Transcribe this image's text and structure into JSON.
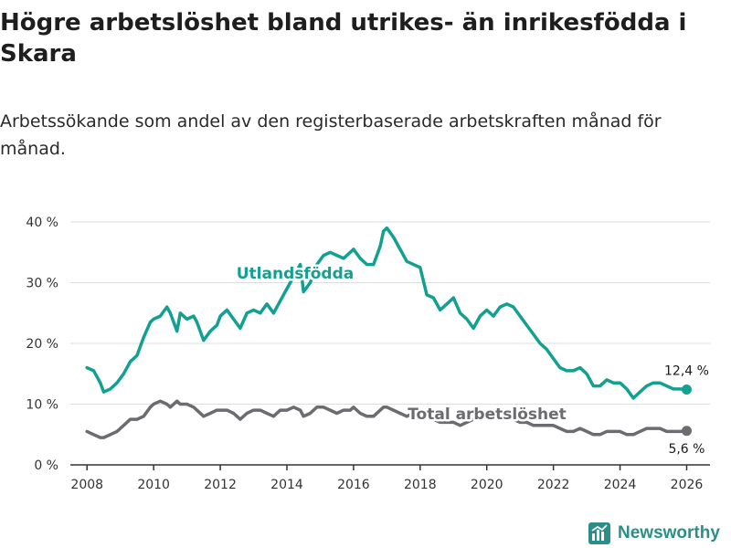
{
  "title": "Högre arbetslöshet bland utrikes- än inrikesfödda i Skara",
  "subtitle": "Arbetssökande som andel av den registerbaserade arbetskraften månad för månad.",
  "brand": {
    "name": "Newsworthy",
    "color": "#2a8f88"
  },
  "chart_data": {
    "type": "line",
    "title": "Högre arbetslöshet bland utrikes- än inrikesfödda i Skara",
    "xlabel": "",
    "ylabel": "",
    "xlim": [
      2007.5,
      2026.7
    ],
    "ylim": [
      0,
      40
    ],
    "grid": true,
    "x_ticks": [
      "2008",
      "2010",
      "2012",
      "2014",
      "2016",
      "2018",
      "2020",
      "2022",
      "2024",
      "2026"
    ],
    "y_ticks": [
      "0 %",
      "10 %",
      "20 %",
      "30 %",
      "40 %"
    ],
    "y_tick_values": [
      0,
      10,
      20,
      30,
      40
    ],
    "x_tick_values": [
      2008,
      2010,
      2012,
      2014,
      2016,
      2018,
      2020,
      2022,
      2024,
      2026
    ],
    "series": [
      {
        "name": "Utlandsfödda",
        "color": "#12a091",
        "end_label": "12,4 %",
        "x": [
          2008.0,
          2008.2,
          2008.4,
          2008.5,
          2008.7,
          2008.9,
          2009.1,
          2009.3,
          2009.5,
          2009.7,
          2009.9,
          2010.0,
          2010.2,
          2010.4,
          2010.5,
          2010.7,
          2010.8,
          2011.0,
          2011.2,
          2011.3,
          2011.5,
          2011.7,
          2011.9,
          2012.0,
          2012.2,
          2012.4,
          2012.6,
          2012.8,
          2013.0,
          2013.2,
          2013.4,
          2013.6,
          2013.8,
          2014.0,
          2014.2,
          2014.4,
          2014.5,
          2014.7,
          2014.9,
          2015.1,
          2015.3,
          2015.5,
          2015.7,
          2015.9,
          2016.0,
          2016.2,
          2016.4,
          2016.6,
          2016.8,
          2016.9,
          2017.0,
          2017.2,
          2017.4,
          2017.6,
          2017.8,
          2018.0,
          2018.2,
          2018.4,
          2018.6,
          2018.8,
          2019.0,
          2019.2,
          2019.4,
          2019.6,
          2019.8,
          2020.0,
          2020.2,
          2020.4,
          2020.6,
          2020.8,
          2021.0,
          2021.2,
          2021.4,
          2021.6,
          2021.8,
          2022.0,
          2022.2,
          2022.4,
          2022.6,
          2022.8,
          2023.0,
          2023.2,
          2023.4,
          2023.6,
          2023.8,
          2024.0,
          2024.2,
          2024.4,
          2024.6,
          2024.8,
          2025.0,
          2025.2,
          2025.4,
          2025.6,
          2025.8,
          2026.0
        ],
        "values": [
          16,
          15.5,
          13.5,
          12,
          12.5,
          13.5,
          15,
          17,
          18,
          21,
          23.5,
          24,
          24.5,
          26,
          25,
          22,
          25,
          24,
          24.5,
          23.5,
          20.5,
          22,
          23,
          24.5,
          25.5,
          24,
          22.5,
          25,
          25.5,
          25,
          26.5,
          25,
          27,
          29,
          31,
          33,
          28.5,
          30,
          33,
          34.5,
          35,
          34.5,
          34,
          35,
          35.5,
          34,
          33,
          33,
          36,
          38.5,
          39,
          37.5,
          35.5,
          33.5,
          33,
          32.5,
          28,
          27.5,
          25.5,
          26.5,
          27.5,
          25,
          24,
          22.5,
          24.5,
          25.5,
          24.5,
          26,
          26.5,
          26,
          24.5,
          23,
          21.5,
          20,
          19,
          17.5,
          16,
          15.5,
          15.5,
          16,
          15,
          13,
          13,
          14,
          13.5,
          13.5,
          12.5,
          11,
          12,
          13,
          13.5,
          13.5,
          13,
          12.5,
          12.5,
          12.4
        ]
      },
      {
        "name": "Total arbetslöshet",
        "color": "#6b6b70",
        "end_label": "5,6 %",
        "x": [
          2008.0,
          2008.2,
          2008.4,
          2008.5,
          2008.7,
          2008.9,
          2009.1,
          2009.3,
          2009.5,
          2009.7,
          2009.9,
          2010.0,
          2010.2,
          2010.4,
          2010.5,
          2010.7,
          2010.8,
          2011.0,
          2011.2,
          2011.3,
          2011.5,
          2011.7,
          2011.9,
          2012.0,
          2012.2,
          2012.4,
          2012.6,
          2012.8,
          2013.0,
          2013.2,
          2013.4,
          2013.6,
          2013.8,
          2014.0,
          2014.2,
          2014.4,
          2014.5,
          2014.7,
          2014.9,
          2015.1,
          2015.3,
          2015.5,
          2015.7,
          2015.9,
          2016.0,
          2016.2,
          2016.4,
          2016.6,
          2016.8,
          2016.9,
          2017.0,
          2017.2,
          2017.4,
          2017.6,
          2017.8,
          2018.0,
          2018.2,
          2018.4,
          2018.6,
          2018.8,
          2019.0,
          2019.2,
          2019.4,
          2019.6,
          2019.8,
          2020.0,
          2020.2,
          2020.4,
          2020.6,
          2020.8,
          2021.0,
          2021.2,
          2021.4,
          2021.6,
          2021.8,
          2022.0,
          2022.2,
          2022.4,
          2022.6,
          2022.8,
          2023.0,
          2023.2,
          2023.4,
          2023.6,
          2023.8,
          2024.0,
          2024.2,
          2024.4,
          2024.6,
          2024.8,
          2025.0,
          2025.2,
          2025.4,
          2025.6,
          2025.8,
          2026.0
        ],
        "values": [
          5.5,
          5,
          4.5,
          4.5,
          5,
          5.5,
          6.5,
          7.5,
          7.5,
          8,
          9.5,
          10,
          10.5,
          10,
          9.5,
          10.5,
          10,
          10,
          9.5,
          9,
          8,
          8.5,
          9,
          9,
          9,
          8.5,
          7.5,
          8.5,
          9,
          9,
          8.5,
          8,
          9,
          9,
          9.5,
          9,
          8,
          8.5,
          9.5,
          9.5,
          9,
          8.5,
          9,
          9,
          9.5,
          8.5,
          8,
          8,
          9,
          9.5,
          9.5,
          9,
          8.5,
          8,
          8.5,
          8.5,
          8,
          7.5,
          7,
          7,
          7,
          6.5,
          7,
          7.5,
          8,
          8.5,
          8.5,
          8,
          8,
          7.5,
          7,
          7,
          6.5,
          6.5,
          6.5,
          6.5,
          6,
          5.5,
          5.5,
          6,
          5.5,
          5,
          5,
          5.5,
          5.5,
          5.5,
          5,
          5,
          5.5,
          6,
          6,
          6,
          5.5,
          5.5,
          5.5,
          5.6
        ]
      }
    ]
  }
}
